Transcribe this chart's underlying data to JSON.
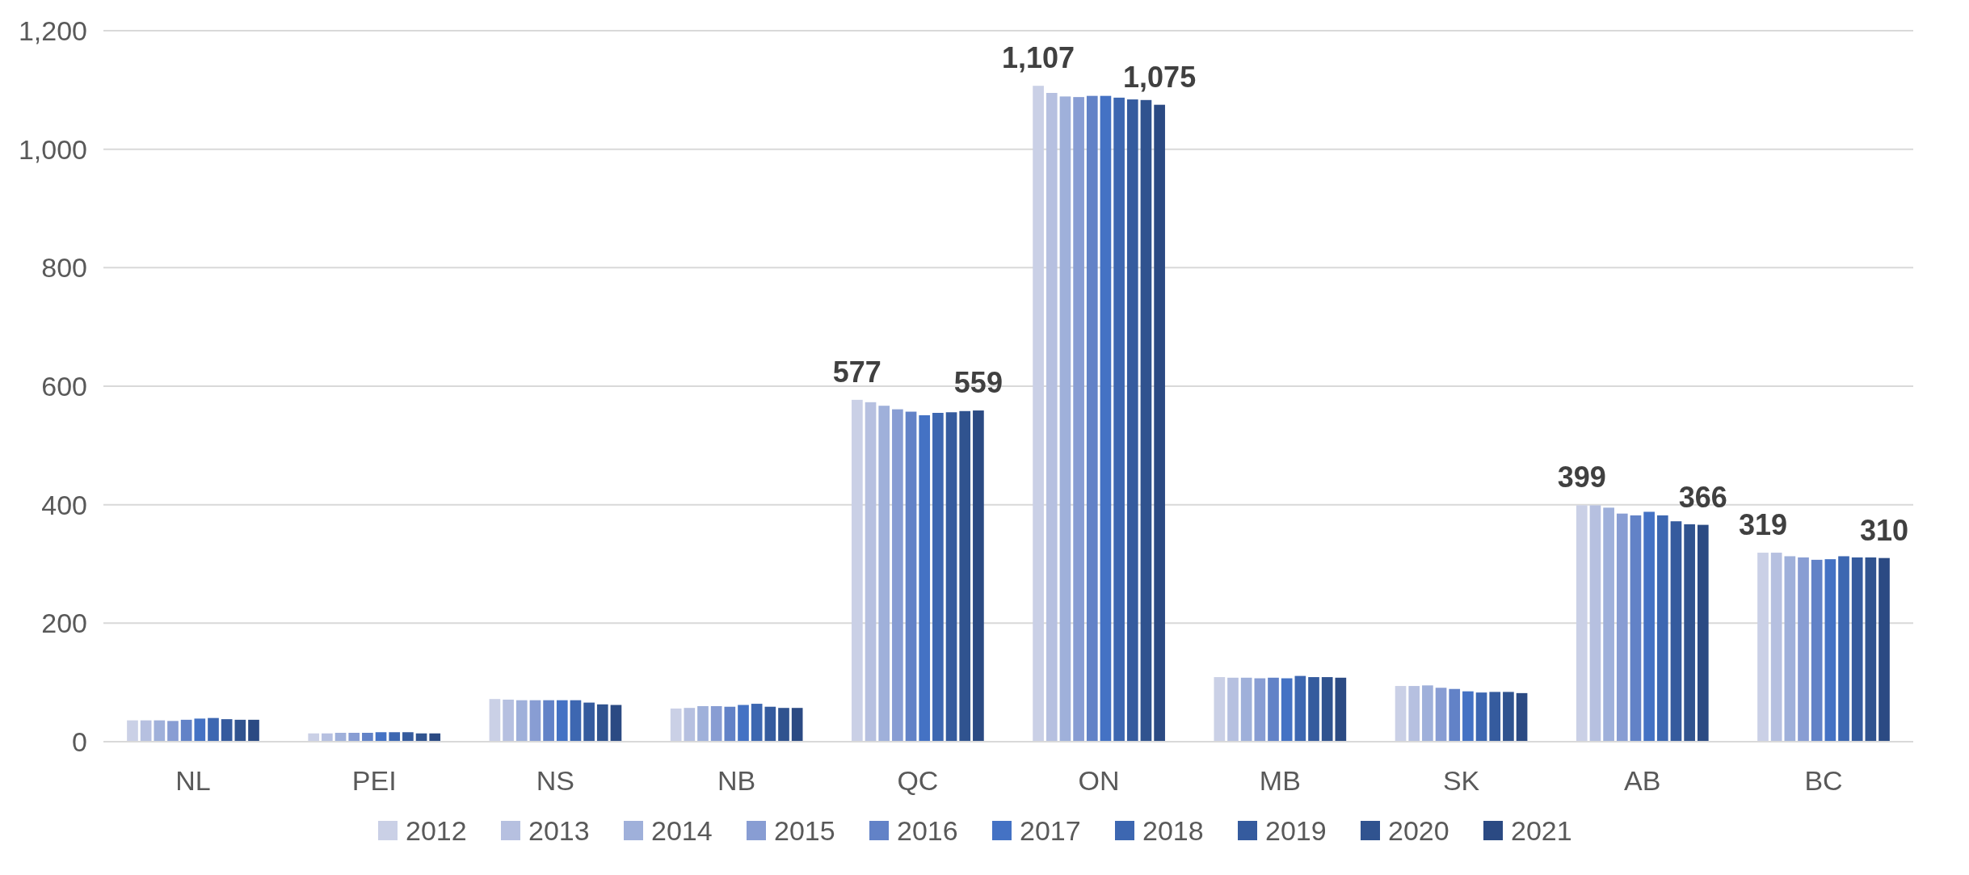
{
  "chart_data": {
    "type": "bar",
    "categories": [
      "NL",
      "PEI",
      "NS",
      "NB",
      "QC",
      "ON",
      "MB",
      "SK",
      "AB",
      "BC"
    ],
    "ylim": [
      0,
      1200
    ],
    "yticks": [
      0,
      200,
      400,
      600,
      800,
      {
        "value": 1000,
        "label": "1,000"
      },
      {
        "value": 1200,
        "label": "1,200"
      }
    ],
    "grid": "y",
    "legend": "bottom",
    "series": [
      {
        "name": "2012",
        "color": "#cad0e6",
        "values": [
          36,
          14,
          72,
          56,
          577,
          1107,
          109,
          94,
          399,
          319
        ],
        "value_labels": [
          null,
          null,
          null,
          null,
          "577",
          "1,107",
          null,
          null,
          "399",
          "319"
        ]
      },
      {
        "name": "2013",
        "color": "#b6c0e0",
        "values": [
          36,
          14,
          71,
          57,
          573,
          1095,
          108,
          94,
          399,
          319
        ]
      },
      {
        "name": "2014",
        "color": "#9fb0da",
        "values": [
          36,
          15,
          70,
          60,
          567,
          1089,
          108,
          95,
          395,
          313
        ]
      },
      {
        "name": "2015",
        "color": "#889dd3",
        "values": [
          35,
          15,
          70,
          60,
          561,
          1088,
          107,
          91,
          385,
          311
        ]
      },
      {
        "name": "2016",
        "color": "#6282c7",
        "values": [
          37,
          15,
          70,
          59,
          557,
          1090,
          108,
          89,
          382,
          307
        ]
      },
      {
        "name": "2017",
        "color": "#4472c4",
        "values": [
          39,
          16,
          70,
          62,
          551,
          1090,
          107,
          85,
          388,
          308
        ]
      },
      {
        "name": "2018",
        "color": "#3d67b1",
        "values": [
          40,
          16,
          70,
          64,
          555,
          1087,
          111,
          83,
          382,
          313
        ]
      },
      {
        "name": "2019",
        "color": "#355b9e",
        "values": [
          38,
          16,
          66,
          59,
          556,
          1084,
          109,
          84,
          372,
          311
        ]
      },
      {
        "name": "2020",
        "color": "#30538f",
        "values": [
          37,
          14,
          63,
          57,
          558,
          1083,
          109,
          84,
          367,
          311
        ]
      },
      {
        "name": "2021",
        "color": "#2b4a83",
        "values": [
          37,
          14,
          62,
          57,
          559,
          1075,
          108,
          82,
          366,
          310
        ],
        "value_labels": [
          null,
          null,
          null,
          null,
          "559",
          "1,075",
          null,
          null,
          "366",
          "310"
        ]
      }
    ]
  }
}
